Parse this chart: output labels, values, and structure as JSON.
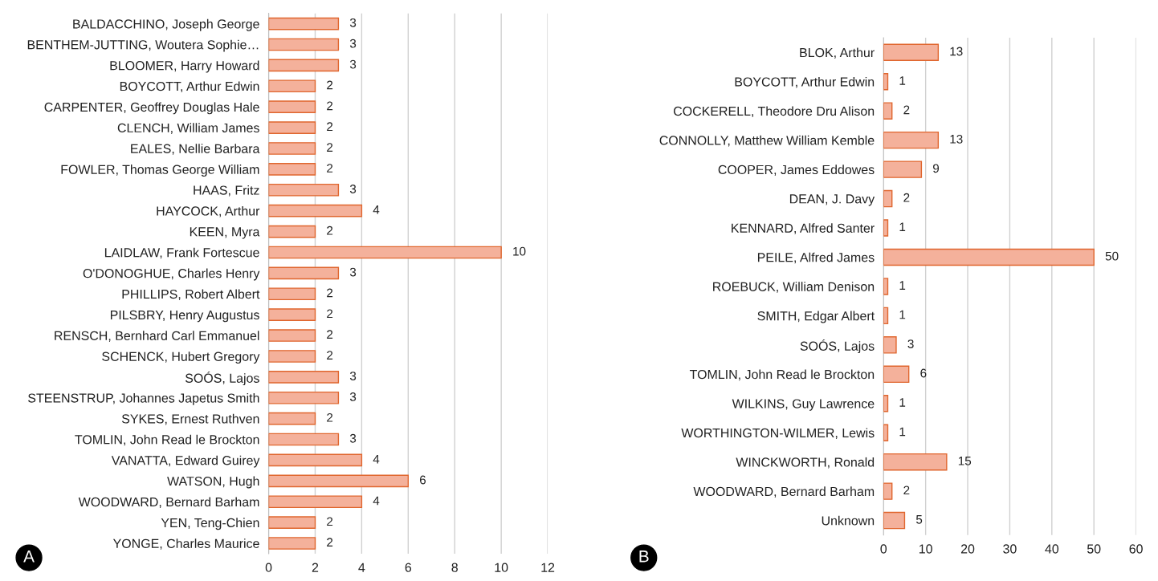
{
  "chart_data": [
    {
      "type": "bar",
      "orientation": "horizontal",
      "categories": [
        "BALDACCHINO, Joseph George",
        "BENTHEM-JUTTING, Woutera Sophie…",
        "BLOOMER, Harry Howard",
        "BOYCOTT, Arthur Edwin",
        "CARPENTER, Geoffrey Douglas Hale",
        "CLENCH, William James",
        "EALES, Nellie Barbara",
        "FOWLER, Thomas George William",
        "HAAS, Fritz",
        "HAYCOCK, Arthur",
        "KEEN, Myra",
        "LAIDLAW, Frank Fortescue",
        "O'DONOGHUE, Charles Henry",
        "PHILLIPS, Robert Albert",
        "PILSBRY, Henry Augustus",
        "RENSCH, Bernhard Carl Emmanuel",
        "SCHENCK, Hubert Gregory",
        "SOÓS, Lajos",
        "STEENSTRUP, Johannes Japetus Smith",
        "SYKES, Ernest Ruthven",
        "TOMLIN, John Read le Brockton",
        "VANATTA, Edward Guirey",
        "WATSON, Hugh",
        "WOODWARD, Bernard Barham",
        "YEN, Teng-Chien",
        "YONGE, Charles Maurice"
      ],
      "values": [
        3,
        3,
        3,
        2,
        2,
        2,
        2,
        2,
        3,
        4,
        2,
        10,
        3,
        2,
        2,
        2,
        2,
        3,
        3,
        2,
        3,
        4,
        6,
        4,
        2,
        2
      ],
      "color": "#f4b19b",
      "xlim": [
        0,
        12
      ],
      "xticks": [
        0,
        2,
        4,
        6,
        8,
        10,
        12
      ],
      "grid": "x",
      "data_labels": true,
      "legend": false,
      "annotations": [
        "A"
      ]
    },
    {
      "type": "bar",
      "orientation": "horizontal",
      "categories": [
        "BLOK, Arthur",
        "BOYCOTT, Arthur Edwin",
        "COCKERELL, Theodore Dru Alison",
        "CONNOLLY, Matthew William Kemble",
        "COOPER, James Eddowes",
        "DEAN, J. Davy",
        "KENNARD, Alfred Santer",
        "PEILE, Alfred James",
        "ROEBUCK, William Denison",
        "SMITH, Edgar Albert",
        "SOÓS, Lajos",
        "TOMLIN, John Read le Brockton",
        "WILKINS, Guy Lawrence",
        "WORTHINGTON-WILMER, Lewis",
        "WINCKWORTH, Ronald",
        "WOODWARD, Bernard Barham",
        "Unknown"
      ],
      "values": [
        13,
        1,
        2,
        13,
        9,
        2,
        1,
        50,
        1,
        1,
        3,
        6,
        1,
        1,
        15,
        2,
        5
      ],
      "color": "#f4b19b",
      "xlim": [
        0,
        60
      ],
      "xticks": [
        0,
        10,
        20,
        30,
        40,
        50,
        60
      ],
      "grid": "x",
      "data_labels": true,
      "legend": false,
      "annotations": [
        "B"
      ]
    }
  ]
}
